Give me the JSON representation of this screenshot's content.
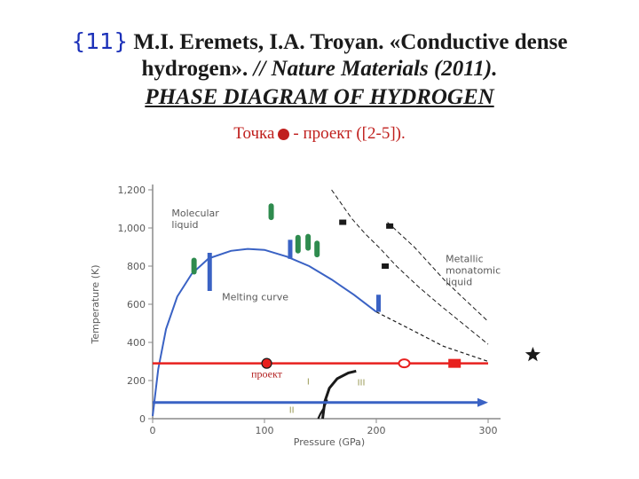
{
  "header": {
    "ref": "{11}",
    "authors": "M.I. Eremets, I.A. Troyan.",
    "title_part1": "«Conductive dense",
    "title_part2": "hydrogen».",
    "journal": "// Nature Materials (2011).",
    "subtitle": "PHASE DIAGRAM OF HYDROGEN",
    "note_before": "Точка",
    "note_after": "-  проект ([2-5])."
  },
  "colors": {
    "axis": "#8a8a8a",
    "blue": "#3a62c4",
    "red": "#e8201e",
    "green": "#2e8b4e",
    "black": "#1a1a1a",
    "point": "#c0201e"
  },
  "chart_data": {
    "type": "scatter",
    "xlabel": "Pressure (GPa)",
    "ylabel": "Temperature (K)",
    "xlim": [
      0,
      300
    ],
    "ylim": [
      0,
      1200
    ],
    "x_ticks": [
      0,
      100,
      200,
      300
    ],
    "y_ticks": [
      0,
      200,
      400,
      600,
      800,
      1000,
      1200
    ],
    "y_tick_labels": [
      "0",
      "200",
      "400",
      "600",
      "800",
      "1,000",
      "1,200"
    ],
    "region_labels": {
      "molecular_liquid": [
        "Molecular",
        "liquid"
      ],
      "metallic_liquid": [
        "Metallic",
        "monatomic",
        "liquid"
      ],
      "melting_curve": "Melting curve",
      "phase_I": "I",
      "phase_II": "II",
      "phase_III": "III",
      "project": "проект"
    },
    "melting_curve": [
      [
        0,
        14
      ],
      [
        5,
        260
      ],
      [
        12,
        470
      ],
      [
        22,
        640
      ],
      [
        35,
        760
      ],
      [
        50,
        840
      ],
      [
        70,
        880
      ],
      [
        85,
        890
      ],
      [
        100,
        885
      ],
      [
        120,
        850
      ],
      [
        140,
        800
      ],
      [
        160,
        730
      ],
      [
        180,
        650
      ],
      [
        200,
        560
      ]
    ],
    "melting_curve_dashed": [
      [
        200,
        560
      ],
      [
        230,
        470
      ],
      [
        260,
        380
      ],
      [
        300,
        300
      ]
    ],
    "metallization_line_1": [
      [
        160,
        1200
      ],
      [
        178,
        1050
      ],
      [
        190,
        970
      ],
      [
        203,
        895
      ],
      [
        218,
        800
      ],
      [
        238,
        690
      ],
      [
        258,
        590
      ],
      [
        300,
        390
      ]
    ],
    "metallization_line_2": [
      [
        210,
        1030
      ],
      [
        234,
        900
      ],
      [
        262,
        720
      ],
      [
        300,
        510
      ]
    ],
    "phase_boundary_I_III": [
      [
        152,
        0
      ],
      [
        154,
        90
      ],
      [
        158,
        160
      ],
      [
        165,
        210
      ],
      [
        175,
        240
      ],
      [
        182,
        250
      ]
    ],
    "phase_boundary_I_II": [
      [
        148,
        0
      ],
      [
        150,
        25
      ],
      [
        153,
        55
      ],
      [
        156,
        100
      ]
    ],
    "red_line": {
      "y": 290,
      "x_start": 0,
      "x_end": 300
    },
    "red_line_markers": [
      {
        "x": 225,
        "shape": "open-circle"
      },
      {
        "x": 270,
        "shape": "square"
      }
    ],
    "star_marker": {
      "x": 340,
      "y": 335
    },
    "blue_arrow": {
      "y": 85,
      "x_start": 0,
      "x_end": 300
    },
    "project_point": {
      "x": 102,
      "y": 290
    },
    "green_bars": [
      {
        "x": 37,
        "y": 800,
        "ylow": 770,
        "yhigh": 830
      },
      {
        "x": 106,
        "y": 1085,
        "ylow": 1055,
        "yhigh": 1115
      },
      {
        "x": 130,
        "y": 915,
        "ylow": 880,
        "yhigh": 950
      },
      {
        "x": 139,
        "y": 925,
        "ylow": 895,
        "yhigh": 955
      },
      {
        "x": 147,
        "y": 890,
        "ylow": 860,
        "yhigh": 920
      }
    ],
    "blue_bars": [
      {
        "x": 51,
        "y": 770,
        "ylow": 670,
        "yhigh": 870
      },
      {
        "x": 123,
        "y": 888,
        "ylow": 838,
        "yhigh": 938
      },
      {
        "x": 202,
        "y": 605,
        "ylow": 560,
        "yhigh": 650
      }
    ],
    "black_squares": [
      [
        170,
        1030
      ],
      [
        212,
        1010
      ],
      [
        208,
        800
      ]
    ]
  }
}
